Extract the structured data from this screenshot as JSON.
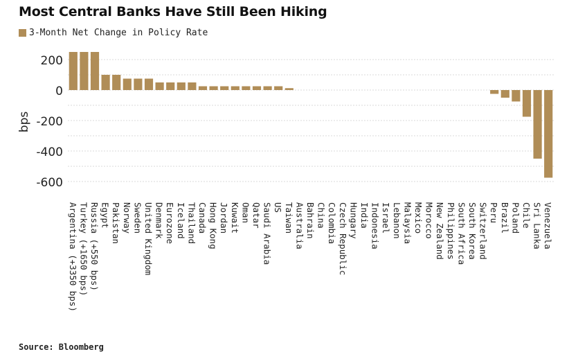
{
  "title": "Most Central Banks Have Still Been Hiking",
  "legend_label": "3-Month Net Change in Policy Rate",
  "source": "Source: Bloomberg",
  "colors": {
    "bar": "#b08d57",
    "grid": "#d9d9d9",
    "axis_text": "#222222"
  },
  "chart_data": {
    "type": "bar",
    "title": "Most Central Banks Have Still Been Hiking",
    "ylabel": "bps",
    "xlabel": "",
    "ylim": [
      -620,
      260
    ],
    "yticks": [
      200,
      0,
      -200,
      -400,
      -600
    ],
    "grid": true,
    "legend_position": "top-left",
    "categories": [
      "Argentina (+3350 bps)",
      "Turkey (+1650 bps)",
      "Russia (+550 bps)",
      "Egypt",
      "Pakistan",
      "Norway",
      "Sweden",
      "United Kingdom",
      "Denmark",
      "Eurozone",
      "Iceland",
      "Thailand",
      "Canada",
      "Hong Kong",
      "Jordan",
      "Kuwait",
      "Oman",
      "Qatar",
      "Saudi Arabia",
      "US",
      "Taiwan",
      "Australia",
      "Bahrain",
      "China",
      "Colombia",
      "Czech Republic",
      "Hungary",
      "India",
      "Indonesia",
      "Israel",
      "Lebanon",
      "Malaysia",
      "Mexico",
      "Morocco",
      "New Zealand",
      "Philippines",
      "South Africa",
      "South Korea",
      "Switzerland",
      "Peru",
      "Brazil",
      "Poland",
      "Chile",
      "Sri Lanka",
      "Venezuela"
    ],
    "series": [
      {
        "values": [
          250,
          250,
          250,
          100,
          100,
          75,
          75,
          75,
          50,
          50,
          50,
          50,
          25,
          25,
          25,
          25,
          25,
          25,
          25,
          25,
          12.5,
          0,
          0,
          0,
          0,
          0,
          0,
          0,
          0,
          0,
          0,
          0,
          0,
          0,
          0,
          0,
          0,
          0,
          0,
          -25,
          -50,
          -75,
          -175,
          -450,
          -575
        ]
      }
    ]
  }
}
